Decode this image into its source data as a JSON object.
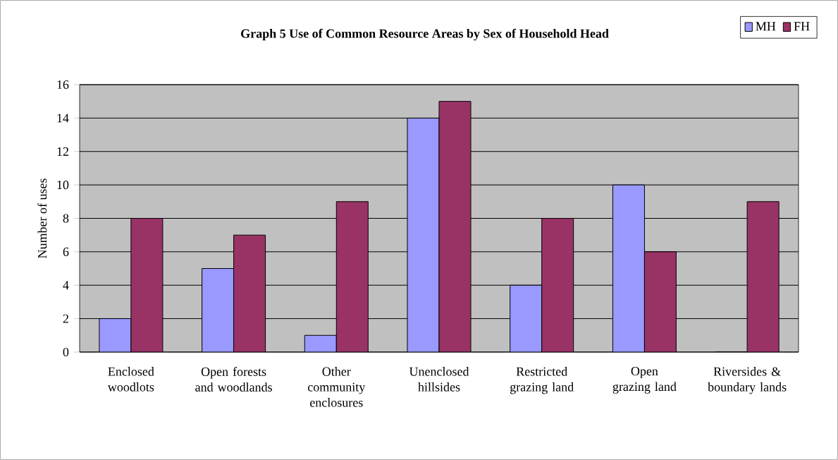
{
  "chart_data": {
    "type": "bar",
    "title": "Graph 5  Use of Common Resource Areas by Sex of Household Head",
    "ylabel": "Number of uses",
    "categories": [
      "Enclosed woodlots",
      "Open forests and woodlands",
      "Other community enclosures",
      "Unenclosed hillsides",
      "Restricted grazing land",
      "Open grazing land",
      "Riversides & boundary lands"
    ],
    "series": [
      {
        "name": "MH",
        "color": "#9999ff",
        "values": [
          2,
          5,
          1,
          14,
          4,
          10,
          0
        ]
      },
      {
        "name": "FH",
        "color": "#993366",
        "values": [
          8,
          7,
          9,
          15,
          8,
          6,
          9
        ]
      }
    ],
    "ylim": [
      0,
      16
    ],
    "yticks": [
      0,
      2,
      4,
      6,
      8,
      10,
      12,
      14,
      16
    ],
    "grid": "y",
    "legend": "top right"
  }
}
